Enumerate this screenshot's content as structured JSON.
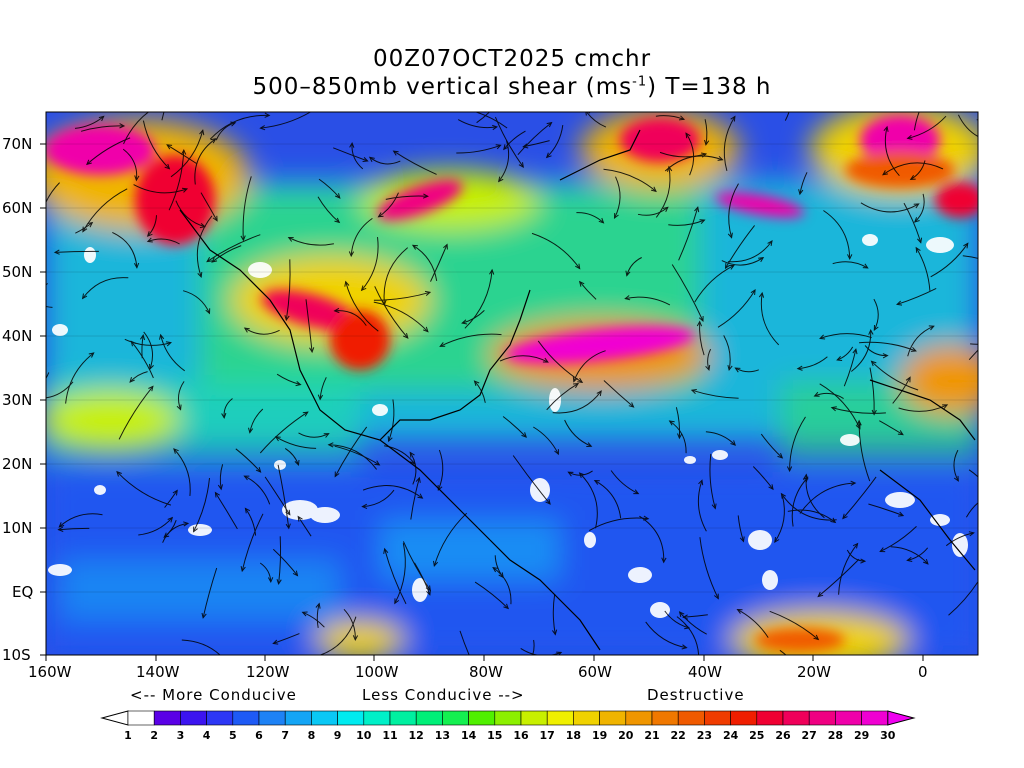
{
  "title_line1": "00Z07OCT2025 cmchr",
  "title_line2_pre": "500–850mb vertical shear (ms",
  "title_line2_sup": "-1",
  "title_line2_post": ") T=138 h",
  "y_ticks": [
    "70N",
    "60N",
    "50N",
    "40N",
    "30N",
    "20N",
    "10N",
    "EQ",
    "10S"
  ],
  "x_ticks": [
    "160W",
    "140W",
    "120W",
    "100W",
    "80W",
    "60W",
    "40W",
    "20W",
    "0"
  ],
  "legend_captions": {
    "more": "<-- More Conducive",
    "less": "Less Conducive -->",
    "destructive": "Destructive"
  },
  "colorbar": {
    "labels": [
      "1",
      "2",
      "3",
      "4",
      "5",
      "6",
      "7",
      "8",
      "9",
      "10",
      "11",
      "12",
      "13",
      "14",
      "15",
      "16",
      "17",
      "18",
      "19",
      "20",
      "21",
      "22",
      "23",
      "24",
      "25",
      "26",
      "27",
      "28",
      "29",
      "30"
    ],
    "colors": [
      "#ffffff",
      "#5a00e6",
      "#3c14f0",
      "#2d37f5",
      "#1e5af5",
      "#1e82f5",
      "#14a5f5",
      "#0ac8f5",
      "#00ebf0",
      "#00f0c8",
      "#00f0a0",
      "#00f078",
      "#14f050",
      "#50f000",
      "#8cf000",
      "#c8f000",
      "#f0f000",
      "#f0d200",
      "#f0b400",
      "#f09600",
      "#f07800",
      "#f05a00",
      "#f03c00",
      "#f01e00",
      "#f00032",
      "#f0005a",
      "#f00082",
      "#f000aa",
      "#f000d2",
      "#f000f0"
    ],
    "under_color": "#ffffff",
    "over_color": "#f000f0"
  },
  "map": {
    "lon_range": [
      -160,
      10
    ],
    "lat_range": [
      -10,
      75
    ],
    "field": "500-850mb vertical shear",
    "units": "ms-1",
    "background_color": "#2a4fe6",
    "streamline_color": "#000000"
  }
}
